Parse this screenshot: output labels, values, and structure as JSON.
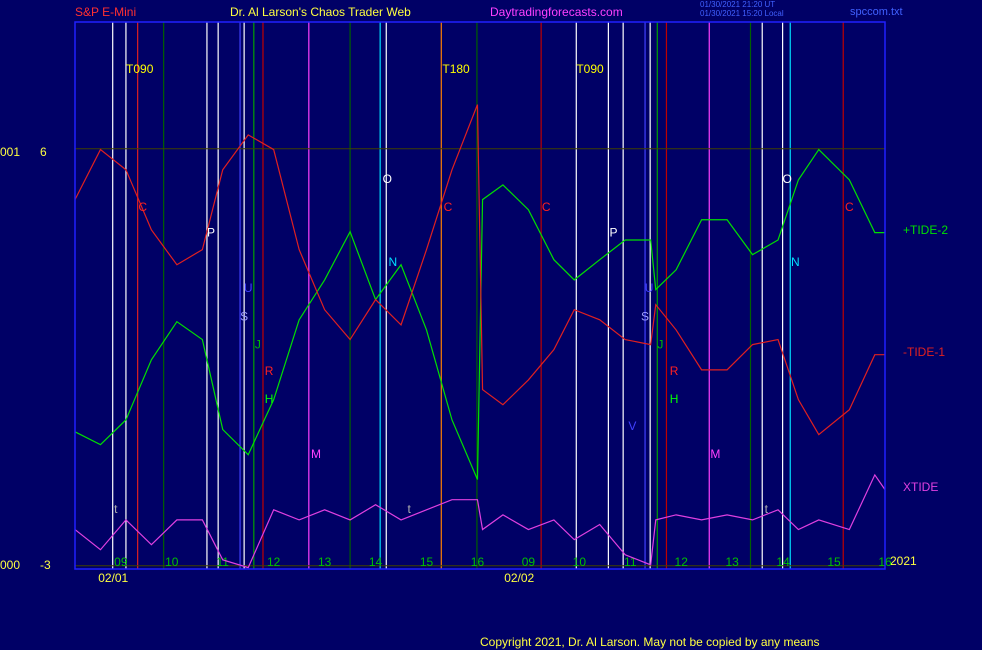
{
  "chart_data": {
    "type": "line",
    "title": "Dr. Al Larson's Chaos Trader Web",
    "symbol": "S&P E-Mini",
    "website": "Daytradingforecasts.com",
    "timestamps": [
      "01/30/2021 21:20 UT",
      "01/30/2021 15:20 Local"
    ],
    "file": "spccom.txt",
    "year": "2021",
    "copyright": "Copyright 2021, Dr. Al Larson. May not be copied by any means",
    "background": "#000066",
    "frame_color": "#2020ff",
    "grid_color": "#404000",
    "x": [
      8.1,
      8.6,
      9.1,
      9.6,
      10.1,
      10.6,
      11.0,
      11.5,
      12.0,
      12.5,
      13.0,
      13.5,
      14.0,
      14.5,
      15.0,
      15.5,
      16.0,
      16.1,
      16.5,
      17.0,
      17.5,
      17.9,
      18.4,
      18.9,
      19.4,
      19.5,
      19.9,
      20.4,
      20.9,
      21.4,
      21.9,
      22.3,
      22.7,
      23.3,
      23.8,
      24.0
    ],
    "series": [
      {
        "name": "+TIDE-2",
        "color": "#00e000",
        "values": [
          -0.08,
          -0.36,
          0.18,
          1.49,
          2.32,
          1.93,
          -0.03,
          -0.58,
          0.62,
          2.36,
          3.23,
          4.28,
          2.8,
          3.56,
          2.14,
          0.18,
          -1.12,
          4.98,
          5.3,
          4.76,
          3.67,
          3.23,
          3.67,
          4.1,
          4.1,
          3.02,
          3.45,
          4.54,
          4.54,
          3.78,
          4.1,
          5.41,
          6.07,
          5.41,
          4.26,
          4.26
        ]
      },
      {
        "name": "-TIDE-1",
        "color": "#e02020",
        "values": [
          4.98,
          6.07,
          5.63,
          4.32,
          3.56,
          3.89,
          5.63,
          6.39,
          6.07,
          3.89,
          2.58,
          1.93,
          2.8,
          2.25,
          3.89,
          5.63,
          7.05,
          0.84,
          0.51,
          1.05,
          1.71,
          2.58,
          2.36,
          1.93,
          1.82,
          2.69,
          2.14,
          1.27,
          1.27,
          1.82,
          1.93,
          0.62,
          -0.14,
          0.4,
          1.6,
          1.6
        ]
      },
      {
        "name": "XTIDE",
        "color": "#e040e0",
        "values": [
          -2.21,
          -2.65,
          -2.0,
          -2.54,
          -2.0,
          -2.0,
          -2.87,
          -3.04,
          -1.78,
          -2.0,
          -1.78,
          -2.0,
          -1.67,
          -2.0,
          -1.78,
          -1.56,
          -1.56,
          -2.21,
          -1.89,
          -2.21,
          -2.0,
          -2.43,
          -2.1,
          -2.76,
          -2.98,
          -2.0,
          -1.89,
          -2.0,
          -1.89,
          -2.0,
          -1.78,
          -2.21,
          -2.0,
          -2.21,
          -1.02,
          -1.34
        ]
      }
    ],
    "xlim": [
      8.1,
      24.0
    ],
    "xticks": [
      {
        "value": 9,
        "label": "09"
      },
      10,
      11,
      12,
      13,
      14,
      15,
      16,
      {
        "value": 17,
        "label": "09"
      },
      {
        "value": 18,
        "label": "10"
      },
      {
        "value": 19,
        "label": "11"
      },
      {
        "value": 20,
        "label": "12"
      },
      {
        "value": 21,
        "label": "13"
      },
      {
        "value": 22,
        "label": "14"
      },
      {
        "value": 23,
        "label": "15"
      },
      {
        "value": 24,
        "label": "16"
      }
    ],
    "dates": [
      {
        "value": 8.85,
        "label": "02/01"
      },
      {
        "value": 16.82,
        "label": "02/02"
      }
    ],
    "ylim": [
      -3.07,
      8.85
    ],
    "yticks": [
      -3,
      6
    ],
    "y_side_labels": [
      "000",
      "001"
    ],
    "event_lines": [
      {
        "x": 8.84,
        "color": "#ffffff"
      },
      {
        "x": 9.1,
        "color": "#ffffff"
      },
      {
        "x": 9.33,
        "color": "#e02020"
      },
      {
        "x": 9.84,
        "color": "#006000"
      },
      {
        "x": 10.69,
        "color": "#ffffff"
      },
      {
        "x": 10.91,
        "color": "#ffffff"
      },
      {
        "x": 11.34,
        "color": "#4040ff"
      },
      {
        "x": 11.42,
        "color": "#ffffff"
      },
      {
        "x": 11.61,
        "color": "#00a000"
      },
      {
        "x": 11.79,
        "color": "#c00000"
      },
      {
        "x": 12.69,
        "color": "#ff40ff"
      },
      {
        "x": 13.5,
        "color": "#006000"
      },
      {
        "x": 14.09,
        "color": "#00e0ff"
      },
      {
        "x": 14.21,
        "color": "#ffffff"
      },
      {
        "x": 15.29,
        "color": "#ff8000"
      },
      {
        "x": 15.99,
        "color": "#006000"
      },
      {
        "x": 17.25,
        "color": "#c00000"
      },
      {
        "x": 17.94,
        "color": "#ffffff"
      },
      {
        "x": 18.57,
        "color": "#ffffff"
      },
      {
        "x": 18.86,
        "color": "#ffffff"
      },
      {
        "x": 19.29,
        "color": "#4040ff"
      },
      {
        "x": 19.39,
        "color": "#ffffff"
      },
      {
        "x": 19.53,
        "color": "#00a000"
      },
      {
        "x": 19.71,
        "color": "#c00000"
      },
      {
        "x": 20.55,
        "color": "#ff40ff"
      },
      {
        "x": 21.36,
        "color": "#006000"
      },
      {
        "x": 21.59,
        "color": "#ffffff"
      },
      {
        "x": 21.99,
        "color": "#ffffff"
      },
      {
        "x": 22.14,
        "color": "#00e0ff"
      },
      {
        "x": 23.18,
        "color": "#c00000"
      }
    ],
    "events": [
      {
        "x": 9.37,
        "y": 7.81,
        "label": "T090",
        "color": "#ffff00"
      },
      {
        "x": 9.43,
        "y": 4.8,
        "label": "C",
        "color": "#ff2020"
      },
      {
        "x": 10.77,
        "y": 4.24,
        "label": "P",
        "color": "#ffffff"
      },
      {
        "x": 11.5,
        "y": 3.04,
        "label": "U",
        "color": "#4040ff"
      },
      {
        "x": 11.42,
        "y": 2.41,
        "label": "S",
        "color": "#a0a0ff"
      },
      {
        "x": 11.69,
        "y": 1.8,
        "label": "J",
        "color": "#00c000"
      },
      {
        "x": 11.91,
        "y": 1.23,
        "label": "R",
        "color": "#ff2020"
      },
      {
        "x": 11.91,
        "y": 0.62,
        "label": "H",
        "color": "#00ff00"
      },
      {
        "x": 12.83,
        "y": -0.58,
        "label": "M",
        "color": "#ff40ff"
      },
      {
        "x": 8.9,
        "y": -1.78,
        "label": "t",
        "color": "#b0b0b0"
      },
      {
        "x": 14.23,
        "y": 5.41,
        "label": "O",
        "color": "#ffffff"
      },
      {
        "x": 14.34,
        "y": 3.6,
        "label": "N",
        "color": "#00e0ff"
      },
      {
        "x": 14.66,
        "y": -1.78,
        "label": "t",
        "color": "#b0b0b0"
      },
      {
        "x": 15.58,
        "y": 7.81,
        "label": "T180",
        "color": "#ffff00"
      },
      {
        "x": 15.42,
        "y": 4.8,
        "label": "C",
        "color": "#ff2020"
      },
      {
        "x": 17.35,
        "y": 4.8,
        "label": "C",
        "color": "#ff2020"
      },
      {
        "x": 18.21,
        "y": 7.81,
        "label": "T090",
        "color": "#ffff00"
      },
      {
        "x": 18.67,
        "y": 4.24,
        "label": "P",
        "color": "#ffffff"
      },
      {
        "x": 19.37,
        "y": 3.04,
        "label": "U",
        "color": "#4040ff"
      },
      {
        "x": 19.29,
        "y": 2.41,
        "label": "S",
        "color": "#a0a0ff"
      },
      {
        "x": 19.59,
        "y": 1.8,
        "label": "J",
        "color": "#00c000"
      },
      {
        "x": 19.86,
        "y": 1.23,
        "label": "R",
        "color": "#ff2020"
      },
      {
        "x": 19.86,
        "y": 0.62,
        "label": "H",
        "color": "#00ff00"
      },
      {
        "x": 19.04,
        "y": 0.03,
        "label": "V",
        "color": "#4040ff"
      },
      {
        "x": 20.67,
        "y": -0.58,
        "label": "M",
        "color": "#ff40ff"
      },
      {
        "x": 21.67,
        "y": -1.78,
        "label": "t",
        "color": "#b0b0b0"
      },
      {
        "x": 22.08,
        "y": 5.41,
        "label": "O",
        "color": "#ffffff"
      },
      {
        "x": 22.24,
        "y": 3.6,
        "label": "N",
        "color": "#00e0ff"
      },
      {
        "x": 23.3,
        "y": 4.8,
        "label": "C",
        "color": "#ff2020"
      }
    ]
  }
}
